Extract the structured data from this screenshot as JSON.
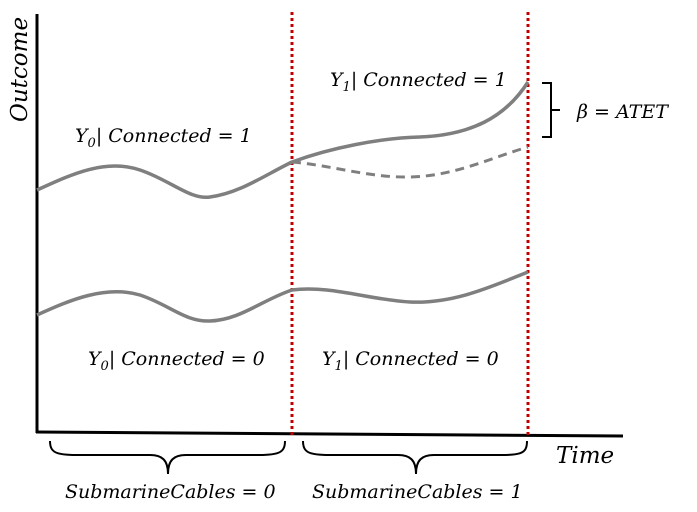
{
  "diagram": {
    "y_axis_label": "Outcome",
    "x_axis_label": "Time",
    "labels": {
      "y1_connected1": {
        "var": "Y",
        "sub": "1",
        "rest": "| Connected = 1"
      },
      "y0_connected1": {
        "var": "Y",
        "sub": "0",
        "rest": "| Connected = 1"
      },
      "y0_connected0": {
        "var": "Y",
        "sub": "0",
        "rest": "| Connected = 0"
      },
      "y1_connected0": {
        "var": "Y",
        "sub": "1",
        "rest": "| Connected = 0"
      }
    },
    "beta_label": "β = ATET",
    "period_before": "SubmarineCables = 0",
    "period_after": "SubmarineCables = 1"
  },
  "colors": {
    "curve": "#7f7f7f",
    "divider": "#c00000",
    "axis": "#000000"
  }
}
